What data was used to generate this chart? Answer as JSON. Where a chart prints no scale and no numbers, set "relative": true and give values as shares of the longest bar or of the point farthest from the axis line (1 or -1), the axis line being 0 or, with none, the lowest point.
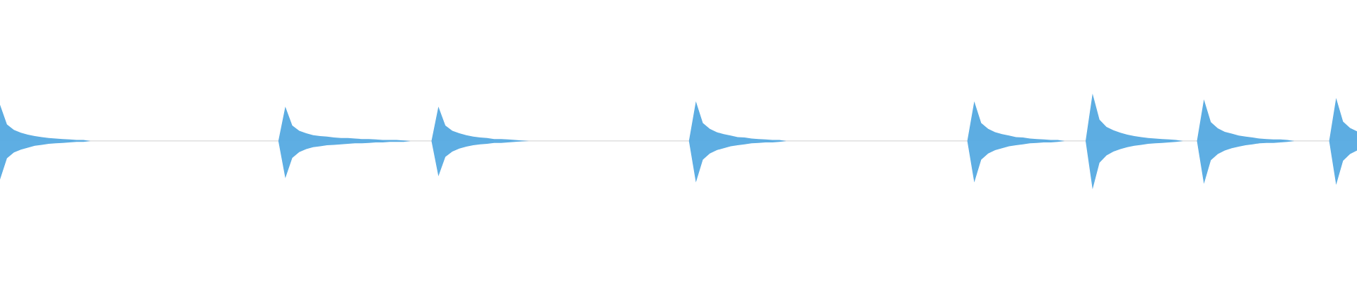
{
  "chart_data": {
    "type": "area",
    "relative": true,
    "categories": [
      null,
      null,
      null,
      null,
      null,
      null,
      null,
      null,
      null,
      null,
      null,
      null,
      null,
      null,
      null,
      null,
      null,
      null,
      null,
      null,
      null,
      null,
      null,
      null,
      null,
      null,
      null,
      null,
      null,
      null,
      null,
      null,
      null,
      null,
      null,
      null,
      null,
      null,
      null,
      null,
      null,
      null,
      null,
      null,
      null,
      null,
      null,
      null,
      null,
      null,
      null,
      null,
      null,
      null,
      null,
      null,
      null,
      null,
      null,
      null,
      null,
      null,
      null,
      null,
      null,
      null,
      null,
      null,
      null,
      null,
      null,
      null,
      null,
      null,
      null,
      null,
      null,
      null,
      null,
      null,
      null,
      null,
      null,
      null,
      null,
      null,
      null,
      null,
      null,
      null,
      null,
      null,
      null,
      null,
      null,
      null,
      null,
      null,
      null,
      null,
      null,
      null,
      null,
      null,
      null,
      null,
      null,
      null,
      null,
      null,
      null,
      null,
      null,
      null,
      null,
      null,
      null,
      null,
      null,
      null,
      null,
      null,
      null,
      null,
      null,
      null,
      null,
      null,
      null,
      null,
      null,
      null,
      null,
      null,
      null,
      null,
      null,
      null,
      null,
      null,
      null,
      null,
      null,
      null,
      null,
      null,
      null,
      null,
      null,
      null,
      null,
      null,
      null,
      null,
      null,
      null,
      null,
      null,
      null,
      null,
      null,
      null,
      null,
      null,
      null,
      null,
      null,
      null,
      null,
      null,
      null,
      null,
      null,
      null,
      null,
      null,
      null,
      null,
      null,
      null,
      null,
      null,
      null,
      null,
      null,
      null,
      null,
      null,
      null,
      null,
      null,
      null,
      null,
      null,
      null,
      null
    ],
    "series": [
      {
        "color": "#5dade2",
        "values": [
          0.75,
          0.34,
          0.23,
          0.17,
          0.13,
          0.1,
          0.08,
          0.06,
          0.05,
          0.04,
          0.03,
          0.02,
          0.02,
          0,
          0,
          0,
          0,
          0,
          0,
          0,
          0,
          0,
          0,
          0,
          0,
          0,
          0,
          0,
          0,
          0,
          0,
          0,
          0,
          0,
          0,
          0,
          0,
          0,
          0,
          0,
          0,
          0.71,
          0.32,
          0.21,
          0.16,
          0.12,
          0.1,
          0.09,
          0.07,
          0.06,
          0.06,
          0.05,
          0.04,
          0.04,
          0.03,
          0.02,
          0.02,
          0.02,
          0.01,
          0,
          0,
          0,
          0,
          0.71,
          0.32,
          0.21,
          0.16,
          0.12,
          0.09,
          0.07,
          0.06,
          0.04,
          0.04,
          0.03,
          0.02,
          0.01,
          0,
          0,
          0,
          0,
          0,
          0,
          0,
          0,
          0,
          0,
          0,
          0,
          0,
          0,
          0,
          0,
          0,
          0,
          0,
          0,
          0,
          0,
          0,
          0,
          0.82,
          0.37,
          0.25,
          0.18,
          0.14,
          0.11,
          0.08,
          0.07,
          0.05,
          0.04,
          0.03,
          0.02,
          0.02,
          0,
          0,
          0,
          0,
          0,
          0,
          0,
          0,
          0,
          0,
          0,
          0,
          0,
          0,
          0,
          0,
          0,
          0,
          0,
          0,
          0,
          0,
          0,
          0,
          0,
          0,
          0,
          0.82,
          0.37,
          0.25,
          0.18,
          0.14,
          0.11,
          0.08,
          0.07,
          0.05,
          0.04,
          0.03,
          0.02,
          0.02,
          0,
          0,
          0,
          0,
          0.98,
          0.44,
          0.29,
          0.22,
          0.17,
          0.13,
          0.1,
          0.08,
          0.06,
          0.05,
          0.04,
          0.03,
          0.02,
          0,
          0,
          0,
          0.86,
          0.39,
          0.26,
          0.19,
          0.15,
          0.11,
          0.09,
          0.07,
          0.05,
          0.04,
          0.03,
          0.03,
          0.02,
          0,
          0,
          0,
          0,
          0,
          0,
          0.89,
          0.4,
          0.27,
          0.2
        ]
      },
      {
        "color": "#5eaee3",
        "values": [
          -0.8,
          -0.36,
          -0.24,
          -0.18,
          -0.14,
          -0.1,
          -0.08,
          -0.06,
          -0.05,
          -0.04,
          -0.03,
          -0.02,
          -0.02,
          0,
          0,
          0,
          0,
          0,
          0,
          0,
          0,
          0,
          0,
          0,
          0,
          0,
          0,
          0,
          0,
          0,
          0,
          0,
          0,
          0,
          0,
          0,
          0,
          0,
          0,
          0,
          0,
          -0.77,
          -0.35,
          -0.23,
          -0.17,
          -0.13,
          -0.11,
          -0.09,
          -0.08,
          -0.07,
          -0.06,
          -0.05,
          -0.05,
          -0.04,
          -0.03,
          -0.03,
          -0.02,
          -0.02,
          -0.02,
          0,
          0,
          0,
          0,
          -0.73,
          -0.33,
          -0.22,
          -0.16,
          -0.12,
          -0.09,
          -0.07,
          -0.06,
          -0.04,
          -0.04,
          -0.03,
          -0.02,
          -0.01,
          0,
          0,
          0,
          0,
          0,
          0,
          0,
          0,
          0,
          0,
          0,
          0,
          0,
          0,
          0,
          0,
          0,
          0,
          0,
          0,
          0,
          0,
          0,
          0,
          -0.86,
          -0.39,
          -0.26,
          -0.19,
          -0.15,
          -0.11,
          -0.09,
          -0.07,
          -0.05,
          -0.04,
          -0.03,
          -0.03,
          -0.02,
          0,
          0,
          0,
          0,
          0,
          0,
          0,
          0,
          0,
          0,
          0,
          0,
          0,
          0,
          0,
          0,
          0,
          0,
          0,
          0,
          0,
          0,
          0,
          0,
          0,
          0,
          0,
          -0.86,
          -0.39,
          -0.26,
          -0.19,
          -0.15,
          -0.11,
          -0.09,
          -0.07,
          -0.05,
          -0.04,
          -0.03,
          -0.03,
          -0.02,
          0,
          0,
          0,
          0,
          -1,
          -0.45,
          -0.3,
          -0.22,
          -0.17,
          -0.13,
          -0.1,
          -0.08,
          -0.06,
          -0.05,
          -0.04,
          -0.03,
          -0.02,
          0,
          0,
          0,
          -0.89,
          -0.4,
          -0.27,
          -0.2,
          -0.15,
          -0.12,
          -0.09,
          -0.07,
          -0.05,
          -0.04,
          -0.04,
          -0.03,
          -0.02,
          0,
          0,
          0,
          0,
          0,
          0,
          -0.91,
          -0.41,
          -0.27,
          -0.2
        ]
      }
    ]
  }
}
